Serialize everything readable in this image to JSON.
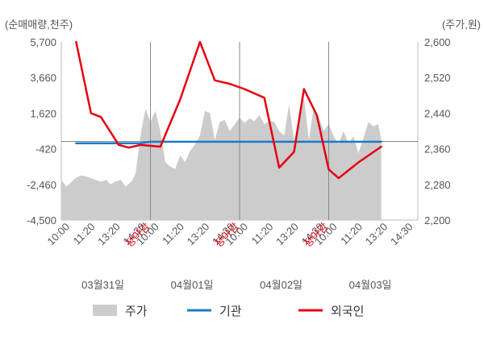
{
  "chart_data": {
    "type": "line",
    "left_axis_unit": "(순매매량,천주)",
    "right_axis_unit": "(주가,원)",
    "left_ticks": [
      "5,700",
      "3,660",
      "1,620",
      "-420",
      "-2,460",
      "-4,500"
    ],
    "left_ylim": [
      -4500,
      5700
    ],
    "right_ticks": [
      "2,600",
      "2,520",
      "2,440",
      "2,360",
      "2,280",
      "2,200"
    ],
    "right_ylim": [
      2200,
      2600
    ],
    "x_tick_labels": [
      "10:00",
      "11:20",
      "13:20",
      "14:30",
      "장마감",
      "10:00",
      "11:20",
      "13:20",
      "14:30",
      "장마감",
      "10:00",
      "11:20",
      "13:20",
      "14:30",
      "장마감",
      "10:00",
      "11:20",
      "13:20",
      "14:30"
    ],
    "close_label": "장마감",
    "dates": [
      "03월31일",
      "04월01일",
      "04월02일",
      "04월03일"
    ],
    "legend": [
      {
        "label": "주가",
        "color": "#cccccc"
      },
      {
        "label": "기관",
        "color": "#1a7bc9"
      },
      {
        "label": "외국인",
        "color": "#e60012"
      }
    ],
    "series": [
      {
        "name": "주가",
        "axis": "right",
        "color": "#cccccc",
        "x": [
          0,
          0.5,
          1,
          1.5,
          2,
          2.5,
          3,
          3.5,
          4,
          4.5,
          5,
          5.5,
          6,
          6.5,
          7,
          7.2,
          7.5,
          8,
          8.5,
          9,
          9.5,
          10,
          10.5,
          11,
          11.5,
          12,
          12.5,
          13,
          13.5,
          14,
          14.5,
          15,
          15.5,
          16,
          16.5,
          17,
          17.5,
          18,
          18.5,
          19,
          19.5,
          20,
          20.5,
          21,
          21.5,
          22,
          22.5,
          23,
          23.5,
          24,
          24.5,
          25,
          25.5,
          26,
          26.5,
          27,
          27.5,
          28,
          28.5,
          29,
          29.5,
          30,
          30.5,
          31,
          31.5,
          32,
          32.3
        ],
        "values": [
          2290,
          2275,
          2285,
          2295,
          2300,
          2298,
          2294,
          2290,
          2286,
          2290,
          2280,
          2287,
          2290,
          2275,
          2285,
          2290,
          2305,
          2390,
          2450,
          2420,
          2445,
          2400,
          2330,
          2320,
          2315,
          2345,
          2330,
          2355,
          2370,
          2390,
          2445,
          2440,
          2380,
          2420,
          2425,
          2400,
          2415,
          2430,
          2418,
          2428,
          2422,
          2436,
          2415,
          2423,
          2420,
          2400,
          2390,
          2460,
          2378,
          2410,
          2475,
          2380,
          2455,
          2430,
          2400,
          2416,
          2388,
          2370,
          2400,
          2372,
          2388,
          2350,
          2383,
          2420,
          2410,
          2416,
          2380
        ]
      },
      {
        "name": "기관",
        "axis": "left",
        "color": "#1a7bc9",
        "x": [
          1.5,
          8,
          9,
          32.3
        ],
        "values": [
          -100,
          -100,
          -20,
          -20
        ]
      },
      {
        "name": "외국인",
        "axis": "left",
        "color": "#e60012",
        "x": [
          1.5,
          3.0,
          4.0,
          5.8,
          6.8,
          8.0,
          10.0,
          12.0,
          14.0,
          15.5,
          17.0,
          18.5,
          20.5,
          22.0,
          23.5,
          24.5,
          25.8,
          27.0,
          28.0,
          30.0,
          32.3
        ],
        "values": [
          5700,
          1620,
          1400,
          -200,
          -350,
          -200,
          -300,
          2400,
          5700,
          3500,
          3300,
          3000,
          2500,
          -1500,
          -600,
          3000,
          1500,
          -1600,
          -2100,
          -1200,
          -300
        ]
      }
    ]
  }
}
